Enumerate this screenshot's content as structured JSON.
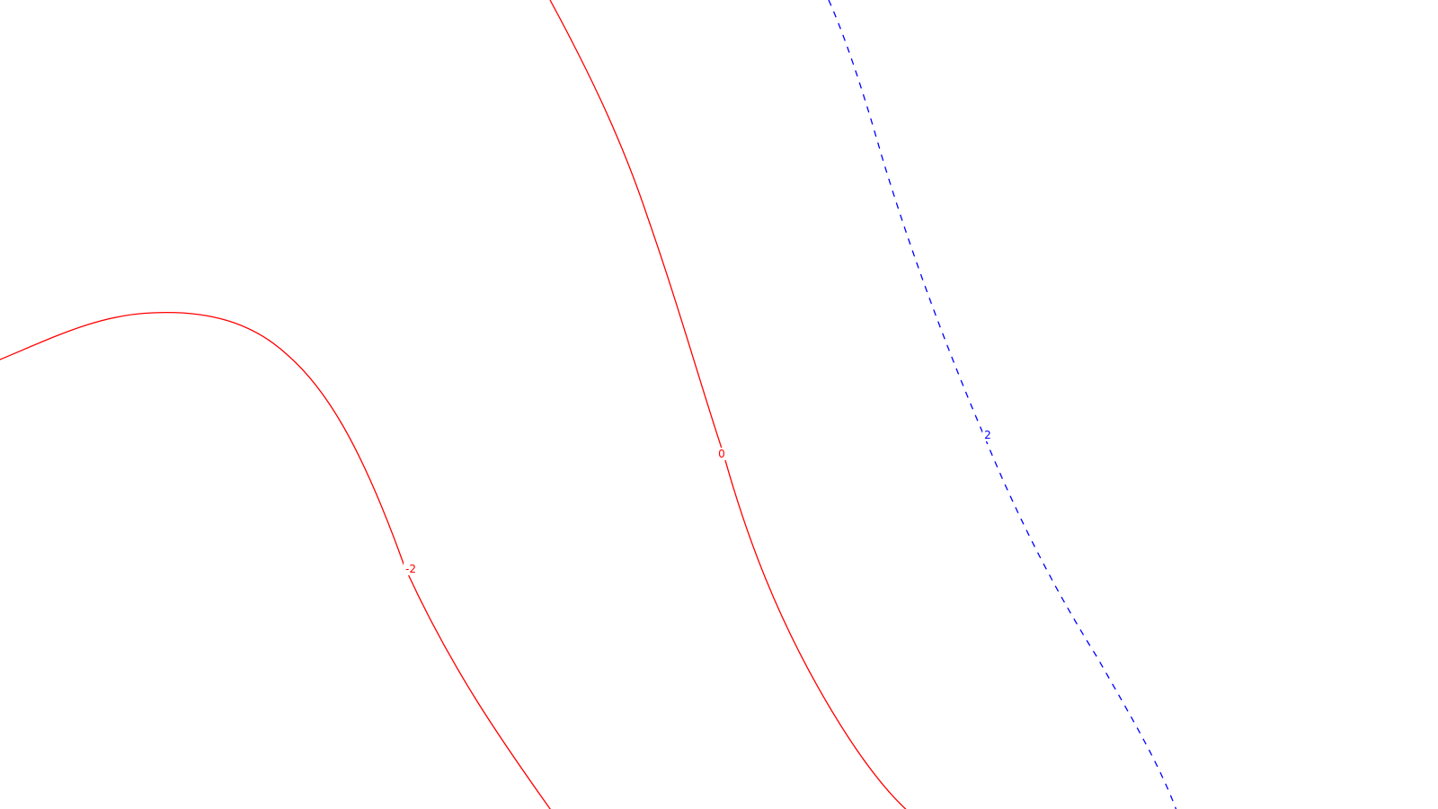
{
  "chart_data": {
    "type": "contour",
    "title": "",
    "xlabel": "",
    "ylabel": "",
    "grid": false,
    "legend": "none",
    "contours": [
      {
        "level": -2,
        "label": "-2",
        "color": "#ff0000",
        "style": "solid"
      },
      {
        "level": 0,
        "label": "0",
        "color": "#ff0000",
        "style": "solid"
      },
      {
        "level": 2,
        "label": "2",
        "color": "#0000ff",
        "style": "dashed"
      }
    ]
  }
}
